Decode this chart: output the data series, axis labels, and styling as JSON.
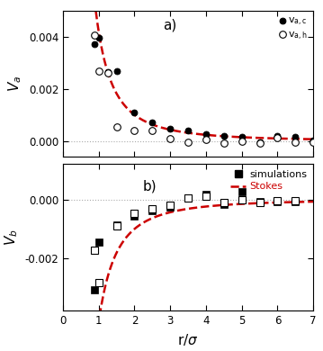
{
  "title_a": "a)",
  "title_b": "b)",
  "xlabel": "r/σ",
  "ylabel_a": "V_a",
  "ylabel_b": "V_b",
  "xlim": [
    0,
    7
  ],
  "ylim_a": [
    -0.0006,
    0.005
  ],
  "ylim_b": [
    -0.0038,
    0.0012
  ],
  "yticks_a": [
    0.0,
    0.002,
    0.004
  ],
  "yticks_b": [
    -0.002,
    0.0
  ],
  "xticks": [
    0,
    1,
    2,
    3,
    4,
    5,
    6,
    7
  ],
  "Va_c_x": [
    0.88,
    1.0,
    1.25,
    1.5,
    2.0,
    2.5,
    3.0,
    3.5,
    4.0,
    4.5,
    5.0,
    5.5,
    6.0,
    6.5,
    7.0
  ],
  "Va_c_y": [
    0.0037,
    0.00395,
    0.00265,
    0.0027,
    0.0011,
    0.00072,
    0.00048,
    0.0004,
    0.00028,
    0.00022,
    0.00018,
    -3e-05,
    0.00022,
    0.00018,
    4e-05
  ],
  "Va_h_x": [
    0.88,
    1.0,
    1.25,
    1.5,
    2.0,
    2.5,
    3.0,
    3.5,
    4.0,
    4.5,
    5.0,
    5.5,
    6.0,
    6.5,
    7.0
  ],
  "Va_h_y": [
    0.00405,
    0.0027,
    0.0026,
    0.00055,
    0.00042,
    0.00042,
    0.0001,
    -5e-05,
    5e-05,
    -8e-05,
    0.0,
    -8e-05,
    0.00012,
    -4e-05,
    -2e-05
  ],
  "Vb_filled_x": [
    0.88,
    1.0,
    1.5,
    2.0,
    2.5,
    3.0,
    3.5,
    4.0,
    4.5,
    5.0,
    5.5,
    6.0,
    6.5
  ],
  "Vb_filled_y": [
    -0.0031,
    -0.00145,
    -0.00088,
    -0.00058,
    -0.00038,
    -0.00025,
    4e-05,
    0.00018,
    -0.00018,
    0.00025,
    -8e-05,
    -8e-05,
    -8e-05
  ],
  "Vb_open_x": [
    0.88,
    1.0,
    1.5,
    2.0,
    2.5,
    3.0,
    3.5,
    4.0,
    4.5,
    5.0,
    5.5,
    6.0,
    6.5
  ],
  "Vb_open_y": [
    -0.00175,
    -0.00285,
    -0.0009,
    -0.00048,
    -0.00032,
    -0.0002,
    4e-05,
    0.0001,
    -0.00012,
    0.0,
    -0.00012,
    -4e-05,
    -4e-05
  ],
  "stokes_a_A": 0.00418,
  "stokes_a_n": 2.05,
  "stokes_b_A": -0.00418,
  "stokes_b_n": 2.05,
  "line_color": "#cc0000",
  "marker_color": "black",
  "zero_line_color": "#aaaaaa"
}
